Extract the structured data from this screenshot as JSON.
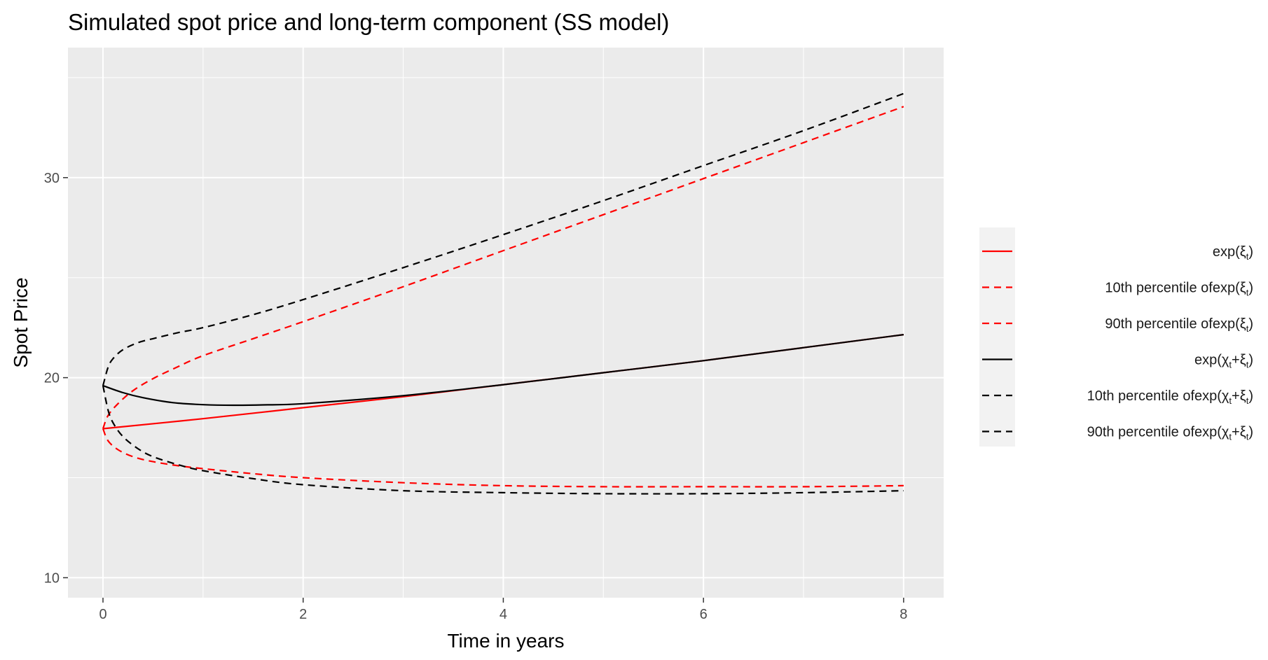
{
  "chart_data": {
    "type": "line",
    "title": "Simulated spot price and long-term component (SS model)",
    "xlabel": "Time in years",
    "ylabel": "Spot Price",
    "xlim": [
      -0.35,
      8.4
    ],
    "ylim": [
      9.0,
      36.5
    ],
    "x_ticks": [
      0,
      2,
      4,
      6,
      8
    ],
    "x_tick_labels": [
      "0",
      "2",
      "4",
      "6",
      "8"
    ],
    "y_ticks": [
      10,
      20,
      30
    ],
    "y_tick_labels": [
      "10",
      "20",
      "30"
    ],
    "grid": true,
    "legend_position": "right",
    "colors": {
      "red": "#ff0000",
      "black": "#000000",
      "panel": "#ebebeb",
      "grid": "#ffffff"
    },
    "series": [
      {
        "name": "exp(ξ_t)",
        "legend_parts": {
          "prefix": "",
          "main": "exp(",
          "body": [
            [
              "ξ",
              "t"
            ]
          ],
          "suffix": ")"
        },
        "color": "#ff0000",
        "dashed": false,
        "x": [
          0,
          1,
          2,
          3,
          4,
          5,
          6,
          7,
          8
        ],
        "y": [
          17.45,
          17.95,
          18.5,
          19.05,
          19.65,
          20.25,
          20.85,
          21.5,
          22.15
        ]
      },
      {
        "name": "10th percentile of exp(ξ_t)",
        "legend_parts": {
          "prefix": "10th percentile of",
          "main": "exp(",
          "body": [
            [
              "ξ",
              "t"
            ]
          ],
          "suffix": ")"
        },
        "color": "#ff0000",
        "dashed": true,
        "x": [
          0,
          0.05,
          0.15,
          0.3,
          0.5,
          0.75,
          1,
          1.5,
          2,
          3,
          4,
          5,
          6,
          7,
          8
        ],
        "y": [
          17.45,
          16.85,
          16.4,
          16.05,
          15.8,
          15.6,
          15.45,
          15.2,
          15.0,
          14.75,
          14.6,
          14.55,
          14.55,
          14.55,
          14.6
        ]
      },
      {
        "name": "90th percentile of exp(ξ_t)",
        "legend_parts": {
          "prefix": "90th percentile of",
          "main": "exp(",
          "body": [
            [
              "ξ",
              "t"
            ]
          ],
          "suffix": ")"
        },
        "color": "#ff0000",
        "dashed": true,
        "x": [
          0,
          0.05,
          0.15,
          0.3,
          0.5,
          0.75,
          1,
          1.5,
          2,
          3,
          4,
          5,
          6,
          7,
          8
        ],
        "y": [
          17.45,
          18.1,
          18.7,
          19.35,
          19.95,
          20.55,
          21.1,
          21.95,
          22.8,
          24.55,
          26.35,
          28.15,
          29.95,
          31.75,
          33.55
        ]
      },
      {
        "name": "exp(χ_t + ξ_t)",
        "legend_parts": {
          "prefix": "",
          "main": "exp(",
          "body": [
            [
              "χ",
              "t"
            ],
            [
              "+",
              ""
            ],
            [
              "ξ",
              "t"
            ]
          ],
          "suffix": ")"
        },
        "color": "#000000",
        "dashed": false,
        "x": [
          0,
          0.2,
          0.4,
          0.7,
          1,
          1.3,
          1.6,
          2,
          3,
          4,
          5,
          6,
          7,
          8
        ],
        "y": [
          19.6,
          19.25,
          19.0,
          18.75,
          18.65,
          18.62,
          18.64,
          18.7,
          19.1,
          19.65,
          20.25,
          20.85,
          21.5,
          22.15
        ]
      },
      {
        "name": "10th percentile of exp(χ_t + ξ_t)",
        "legend_parts": {
          "prefix": "10th percentile of",
          "main": "exp(",
          "body": [
            [
              "χ",
              "t"
            ],
            [
              "+",
              ""
            ],
            [
              "ξ",
              "t"
            ]
          ],
          "suffix": ")"
        },
        "color": "#000000",
        "dashed": true,
        "x": [
          0,
          0.05,
          0.1,
          0.2,
          0.35,
          0.5,
          0.75,
          1,
          1.5,
          2,
          3,
          4,
          5,
          6,
          7,
          8
        ],
        "y": [
          19.6,
          18.4,
          17.75,
          17.05,
          16.45,
          16.05,
          15.65,
          15.35,
          14.95,
          14.65,
          14.35,
          14.25,
          14.2,
          14.2,
          14.25,
          14.35
        ]
      },
      {
        "name": "90th percentile of exp(χ_t + ξ_t)",
        "legend_parts": {
          "prefix": "90th percentile of",
          "main": "exp(",
          "body": [
            [
              "χ",
              "t"
            ],
            [
              "+",
              ""
            ],
            [
              "ξ",
              "t"
            ]
          ],
          "suffix": ")"
        },
        "color": "#000000",
        "dashed": true,
        "x": [
          0,
          0.05,
          0.1,
          0.2,
          0.35,
          0.5,
          0.75,
          1,
          1.5,
          2,
          3,
          4,
          5,
          6,
          7,
          8
        ],
        "y": [
          19.6,
          20.5,
          20.95,
          21.4,
          21.75,
          21.95,
          22.25,
          22.5,
          23.15,
          23.9,
          25.5,
          27.15,
          28.85,
          30.6,
          32.35,
          34.2
        ]
      }
    ]
  }
}
